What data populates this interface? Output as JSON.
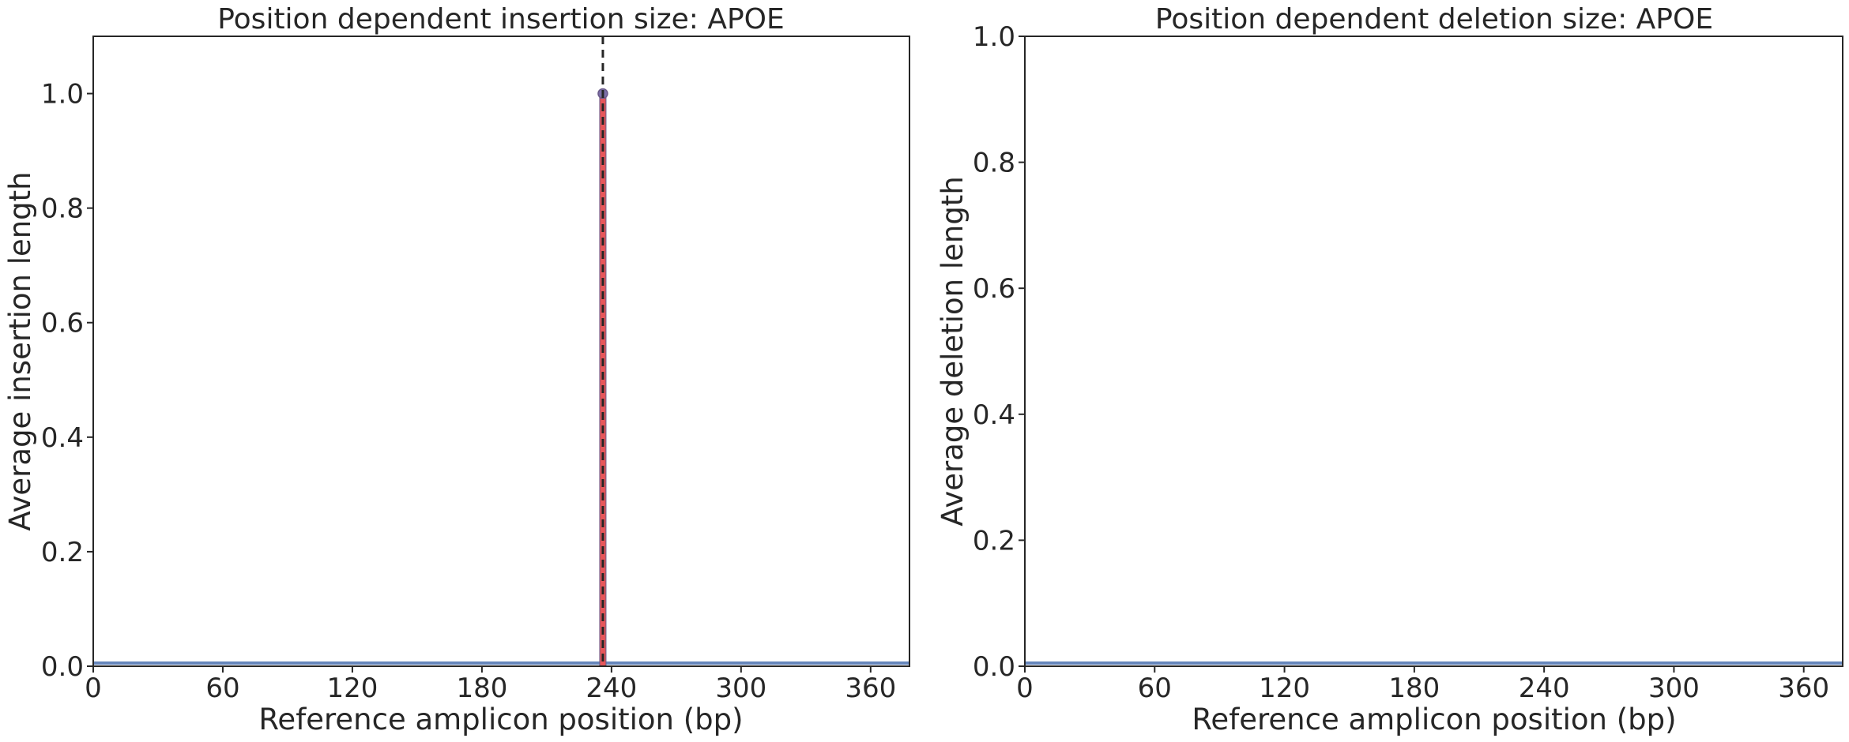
{
  "colors": {
    "axis": "#262626",
    "insertion_bar": "#e6575a",
    "insertion_edge": "#6b5a8a",
    "marker_fill": "#7b6fa8",
    "baseline": "#4c72b0",
    "cut_site_line": "#262626"
  },
  "chart_data": [
    {
      "type": "bar",
      "title": "Position dependent insertion size: APOE",
      "xlabel": "Reference amplicon position (bp)",
      "ylabel": "Average insertion length",
      "xlim": [
        0,
        378
      ],
      "ylim": [
        0,
        1.1
      ],
      "xticks": [
        0,
        60,
        120,
        180,
        240,
        300,
        360
      ],
      "yticks": [
        0.0,
        0.2,
        0.4,
        0.6,
        0.8,
        1.0
      ],
      "xtick_labels": [
        "0",
        "60",
        "120",
        "180",
        "240",
        "300",
        "360"
      ],
      "ytick_labels": [
        "0.0",
        "0.2",
        "0.4",
        "0.6",
        "0.8",
        "1.0"
      ],
      "baseline_value": 0,
      "bars": [
        {
          "x": 236,
          "value": 1.0
        }
      ],
      "cut_site": 236,
      "grid": false
    },
    {
      "type": "bar",
      "title": "Position dependent deletion size: APOE",
      "xlabel": "Reference amplicon position (bp)",
      "ylabel": "Average deletion length",
      "xlim": [
        0,
        378
      ],
      "ylim": [
        0,
        1.0
      ],
      "xticks": [
        0,
        60,
        120,
        180,
        240,
        300,
        360
      ],
      "yticks": [
        0.0,
        0.2,
        0.4,
        0.6,
        0.8,
        1.0
      ],
      "xtick_labels": [
        "0",
        "60",
        "120",
        "180",
        "240",
        "300",
        "360"
      ],
      "ytick_labels": [
        "0.0",
        "0.2",
        "0.4",
        "0.6",
        "0.8",
        "1.0"
      ],
      "baseline_value": 0,
      "bars": [],
      "grid": false
    }
  ]
}
